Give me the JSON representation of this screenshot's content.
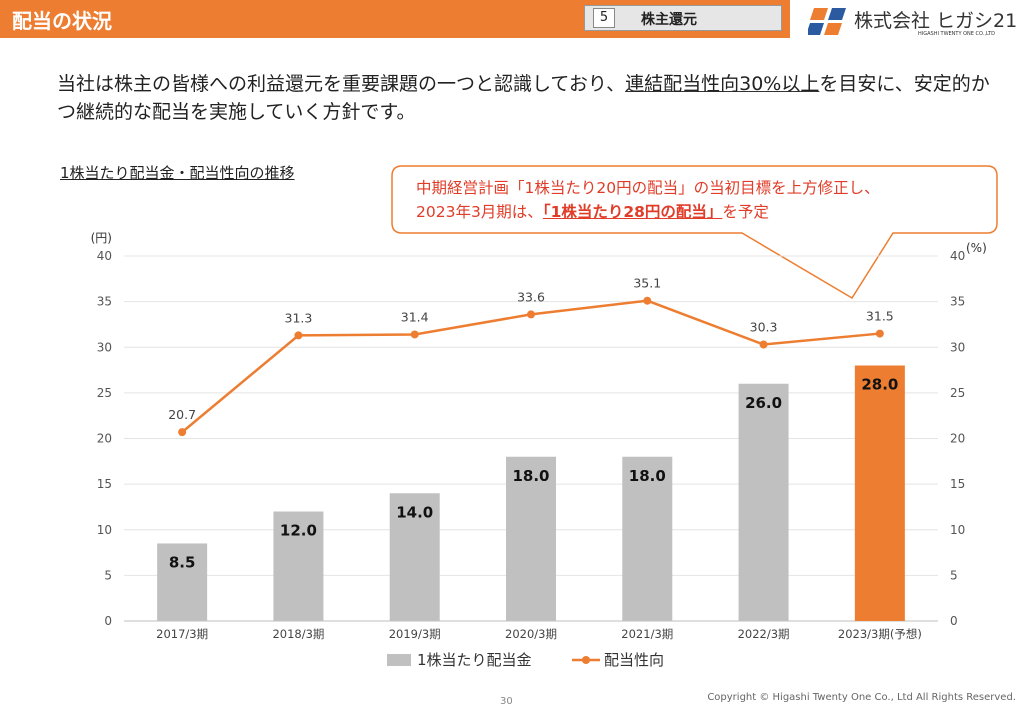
{
  "header": {
    "title": "配当の状況",
    "section_number": "5",
    "section_label": "株主還元"
  },
  "logo": {
    "name": "株式会社 ヒガシ21",
    "sub": "HIGASHI TWENTY ONE CO.,LTD",
    "colors": [
      "#ed7d31",
      "#2b5aa0"
    ]
  },
  "intro": {
    "part1": "当社は株主の皆様への利益還元を重要課題の一つと認識しており、",
    "highlight": "連結配当性向30%以上",
    "part2": "を目安に、安定的かつ継続的な配当を実施していく方針です。"
  },
  "chart_title": "1株当たり配当金・配当性向の推移",
  "callout": {
    "line1": "中期経営計画「1株当たり20円の配当」の当初目標を上方修正し、",
    "line2_pre": "2023年3月期は、",
    "line2_highlight": "「1株当たり28円の配当」",
    "line2_post": "を予定"
  },
  "chart_data": {
    "type": "bar",
    "categories": [
      "2017/3期",
      "2018/3期",
      "2019/3期",
      "2020/3期",
      "2021/3期",
      "2022/3期",
      "2023/3期(予想)"
    ],
    "series": [
      {
        "name": "1株当たり配当金",
        "type": "bar",
        "values": [
          8.5,
          12.0,
          14.0,
          18.0,
          18.0,
          26.0,
          28.0
        ],
        "labels": [
          "8.5",
          "12.0",
          "14.0",
          "18.0",
          "18.0",
          "26.0",
          "28.0"
        ]
      },
      {
        "name": "配当性向",
        "type": "line",
        "values": [
          20.7,
          31.3,
          31.4,
          33.6,
          35.1,
          30.3,
          31.5
        ],
        "labels": [
          "20.7",
          "31.3",
          "31.4",
          "33.6",
          "35.1",
          "30.3",
          "31.5"
        ]
      }
    ],
    "y_left": {
      "unit": "(円)",
      "range": [
        0,
        40
      ],
      "ticks": [
        "0",
        "5",
        "10",
        "15",
        "20",
        "25",
        "30",
        "35",
        "40"
      ]
    },
    "y_right": {
      "unit": "(%)",
      "range": [
        0,
        40
      ],
      "ticks": [
        "0",
        "5",
        "10",
        "15",
        "20",
        "25",
        "30",
        "35",
        "40"
      ]
    },
    "legend": "bottom-center",
    "grid": true,
    "colors": {
      "bar": "#c0c0c0",
      "bar_highlight": "#ed7d31",
      "line": "#ed7d31"
    }
  },
  "footer": {
    "page": "30",
    "copyright": "Copyright © Higashi Twenty One Co., Ltd All Rights Reserved."
  }
}
